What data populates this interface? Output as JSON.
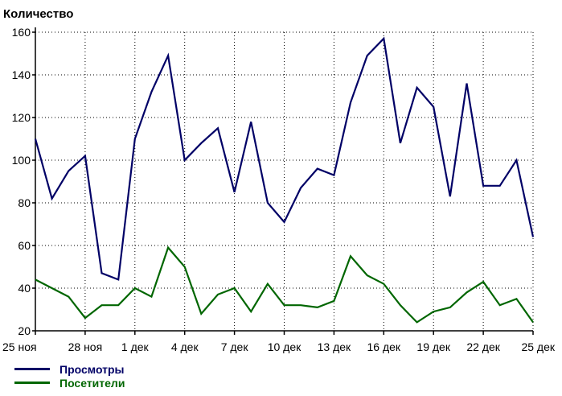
{
  "chart_data": {
    "type": "line",
    "ylabel": "Количество",
    "xlabel": "",
    "ylim": [
      20,
      160
    ],
    "yticks": [
      20,
      40,
      60,
      80,
      100,
      120,
      140,
      160
    ],
    "x": [
      "25 ноя",
      "26 ноя",
      "27 ноя",
      "28 ноя",
      "29 ноя",
      "30 ноя",
      "1 дек",
      "2 дек",
      "3 дек",
      "4 дек",
      "5 дек",
      "6 дек",
      "7 дек",
      "8 дек",
      "9 дек",
      "10 дек",
      "11 дек",
      "12 дек",
      "13 дек",
      "14 дек",
      "15 дек",
      "16 дек",
      "17 дек",
      "18 дек",
      "19 дек",
      "20 дек",
      "21 дек",
      "22 дек",
      "23 дек",
      "24 дек",
      "25 дек"
    ],
    "xticks": [
      "25 ноя",
      "28 ноя",
      "1 дек",
      "4 дек",
      "7 дек",
      "10 дек",
      "13 дек",
      "16 дек",
      "19 дек",
      "22 дек",
      "25 дек"
    ],
    "grid": true,
    "legend_position": "bottom-left",
    "series": [
      {
        "name": "Просмотры",
        "color": "#000066",
        "values": [
          110,
          82,
          95,
          102,
          47,
          44,
          110,
          132,
          149,
          100,
          108,
          115,
          85,
          118,
          80,
          71,
          87,
          96,
          93,
          127,
          149,
          157,
          108,
          134,
          125,
          83,
          136,
          88,
          88,
          100,
          64
        ]
      },
      {
        "name": "Посетители",
        "color": "#006600",
        "values": [
          44,
          40,
          36,
          26,
          32,
          32,
          40,
          36,
          59,
          50,
          28,
          37,
          40,
          29,
          42,
          32,
          32,
          31,
          34,
          55,
          46,
          42,
          32,
          24,
          29,
          31,
          38,
          43,
          32,
          35,
          24
        ]
      }
    ]
  }
}
